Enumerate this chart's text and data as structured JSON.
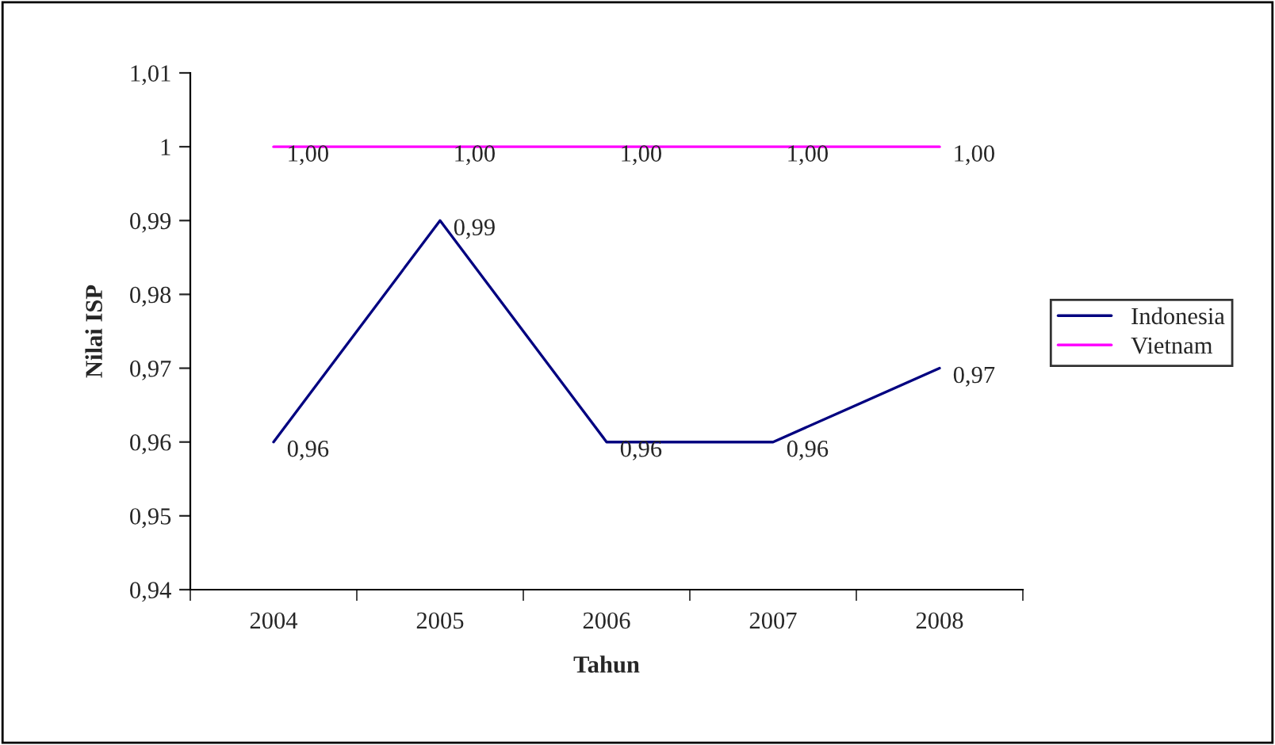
{
  "chart_data": {
    "type": "line",
    "xlabel": "Tahun",
    "ylabel": "Nilai ISP",
    "categories": [
      "2004",
      "2005",
      "2006",
      "2007",
      "2008"
    ],
    "series": [
      {
        "name": "Indonesia",
        "color": "#000080",
        "values": [
          0.96,
          0.99,
          0.96,
          0.96,
          0.97
        ],
        "value_labels": [
          "0,96",
          "0,99",
          "0,96",
          "0,96",
          "0,97"
        ]
      },
      {
        "name": "Vietnam",
        "color": "#ff00ff",
        "values": [
          1.0,
          1.0,
          1.0,
          1.0,
          1.0
        ],
        "value_labels": [
          "1,00",
          "1,00",
          "1,00",
          "1,00",
          "1,00"
        ]
      }
    ],
    "ylim": [
      0.94,
      1.01
    ],
    "yticks": [
      {
        "value": 0.94,
        "label": "0,94"
      },
      {
        "value": 0.95,
        "label": "0,95"
      },
      {
        "value": 0.96,
        "label": "0,96"
      },
      {
        "value": 0.97,
        "label": "0,97"
      },
      {
        "value": 0.98,
        "label": "0,98"
      },
      {
        "value": 0.99,
        "label": "0,99"
      },
      {
        "value": 1,
        "label": "1"
      },
      {
        "value": 1.01,
        "label": "1,01"
      }
    ],
    "grid": false,
    "legend": "right",
    "marker": "none",
    "line_style": "solid"
  }
}
